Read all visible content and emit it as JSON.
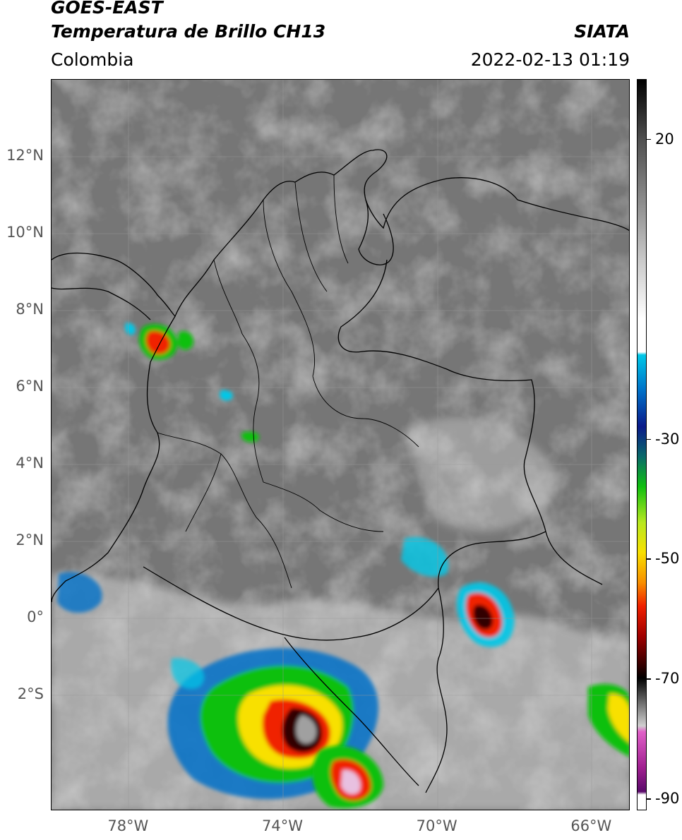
{
  "header": {
    "title_line1": "GOES-EAST",
    "title_line2": "Temperatura de Brillo CH13",
    "region": "Colombia",
    "organization": "SIATA",
    "timestamp": "2022-02-13 01:19"
  },
  "map": {
    "projection": "PlateCarree",
    "lon_range": [
      -80,
      -65
    ],
    "lat_range": [
      -5,
      14
    ],
    "lat_labels": [
      {
        "lat": 12,
        "text": "12°N"
      },
      {
        "lat": 10,
        "text": "10°N"
      },
      {
        "lat": 8,
        "text": "8°N"
      },
      {
        "lat": 6,
        "text": "6°N"
      },
      {
        "lat": 4,
        "text": "4°N"
      },
      {
        "lat": 2,
        "text": "2°N"
      },
      {
        "lat": 0,
        "text": "0°"
      },
      {
        "lat": -2,
        "text": "2°S"
      }
    ],
    "lon_labels": [
      {
        "lon": -78,
        "text": "78°W"
      },
      {
        "lon": -74,
        "text": "74°W"
      },
      {
        "lon": -70,
        "text": "70°W"
      },
      {
        "lon": -66,
        "text": "66°W"
      }
    ],
    "gridlines": true
  },
  "colorbar": {
    "range": [
      -92,
      30
    ],
    "tick_labels": [
      {
        "value": 20,
        "text": "20"
      },
      {
        "value": -30,
        "text": "-30"
      },
      {
        "value": -50,
        "text": "-50"
      },
      {
        "value": -70,
        "text": "-70"
      },
      {
        "value": -90,
        "text": "-90"
      }
    ],
    "stops": [
      {
        "value": 30,
        "color": "#000000"
      },
      {
        "value": 20,
        "color": "#505050"
      },
      {
        "value": 10,
        "color": "#8a8a8a"
      },
      {
        "value": 0,
        "color": "#c8c8c8"
      },
      {
        "value": -10,
        "color": "#ffffff"
      },
      {
        "value": -15.5,
        "color": "#ffffff"
      },
      {
        "value": -16,
        "color": "#00c8e8"
      },
      {
        "value": -22,
        "color": "#0070c8"
      },
      {
        "value": -28,
        "color": "#0a1a8a"
      },
      {
        "value": -33,
        "color": "#0a6a6a"
      },
      {
        "value": -38,
        "color": "#10c010"
      },
      {
        "value": -44,
        "color": "#b8e820"
      },
      {
        "value": -49,
        "color": "#f8e000"
      },
      {
        "value": -54,
        "color": "#f89000"
      },
      {
        "value": -58,
        "color": "#f02000"
      },
      {
        "value": -63,
        "color": "#a00000"
      },
      {
        "value": -68,
        "color": "#300000"
      },
      {
        "value": -70,
        "color": "#000000"
      },
      {
        "value": -73,
        "color": "#505050"
      },
      {
        "value": -78,
        "color": "#d0d0d0"
      },
      {
        "value": -79,
        "color": "#e060c8"
      },
      {
        "value": -85,
        "color": "#a02090"
      },
      {
        "value": -89,
        "color": "#5a0a6a"
      },
      {
        "value": -89.5,
        "color": "#ffffff"
      },
      {
        "value": -92,
        "color": "#ffffff"
      }
    ]
  }
}
